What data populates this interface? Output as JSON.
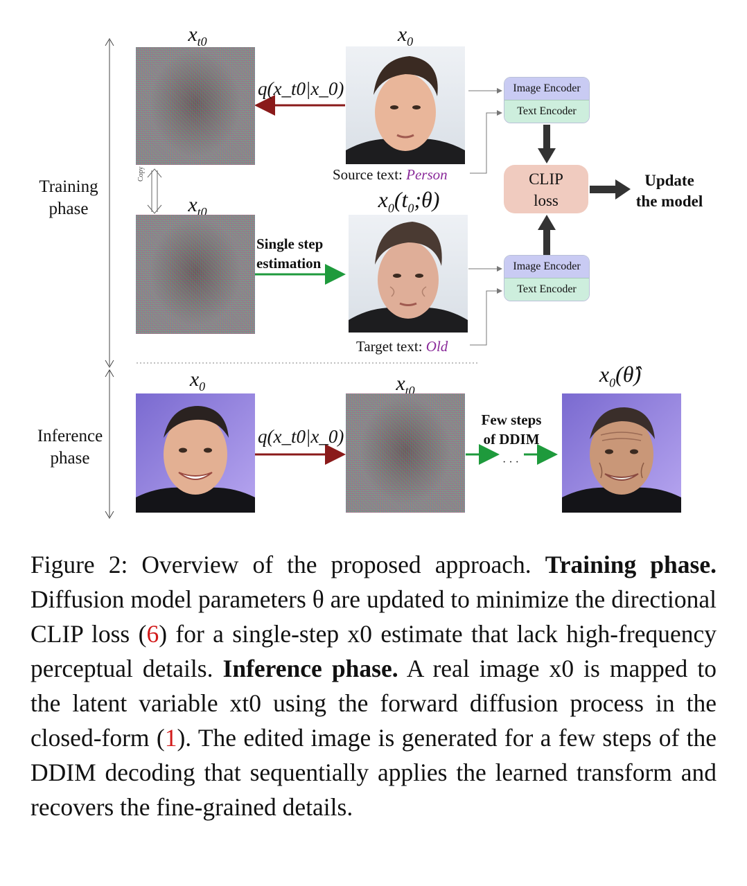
{
  "figure": {
    "phases": {
      "training": "Training\nphase",
      "inference": "Inference\nphase"
    },
    "copy_label": "Copy",
    "image_titles": {
      "x_t0_top": "x_t0",
      "x_0_top": "x_0",
      "x_t0_mid": "x_t0",
      "x_0_estimate": "x0(t0;θ)",
      "x_0_inf": "x_0",
      "x_t0_inf": "x_t0",
      "x_0_theta_hat": "x0(θ̂)"
    },
    "arrows": {
      "forward_top": "q(x_t0|x_0)",
      "single_step": "Single step\nestimation",
      "forward_inf": "q(x_t0|x_0)",
      "ddim": "Few steps\nof DDIM",
      "dots": "· · ·"
    },
    "texts": {
      "source_prefix": "Source text: ",
      "source_value": "Person",
      "target_prefix": "Target text: ",
      "target_value": "Old"
    },
    "encoders": {
      "image": "Image Encoder",
      "text": "Text Encoder"
    },
    "clip_loss": "CLIP\nloss",
    "update": "Update\nthe model",
    "colors": {
      "red_arrow": "#8a1a1a",
      "green_arrow": "#1e9a3c",
      "purple_text": "#8a2a9a",
      "image_encoder": "#c9cbf3",
      "text_encoder": "#cdeedd",
      "clip_box": "#f0cbbf"
    }
  },
  "caption": {
    "p1": "Figure 2: Overview of the proposed approach. ",
    "b1": "Training phase.",
    "p2": " Diffusion model parameters θ are updated to minimize the directional CLIP loss (",
    "ref1": "6",
    "p3": ") for a single-step x0 estimate that lack high-frequency perceptual details. ",
    "b2": "Inference phase.",
    "p4": " A real image x0 is mapped to the latent variable xt0 using the forward diffusion process in the closed-form (",
    "ref2": "1",
    "p5": "). The edited image is generated for a few steps of the DDIM decoding that sequentially applies the learned transform and recovers the fine-grained details."
  }
}
